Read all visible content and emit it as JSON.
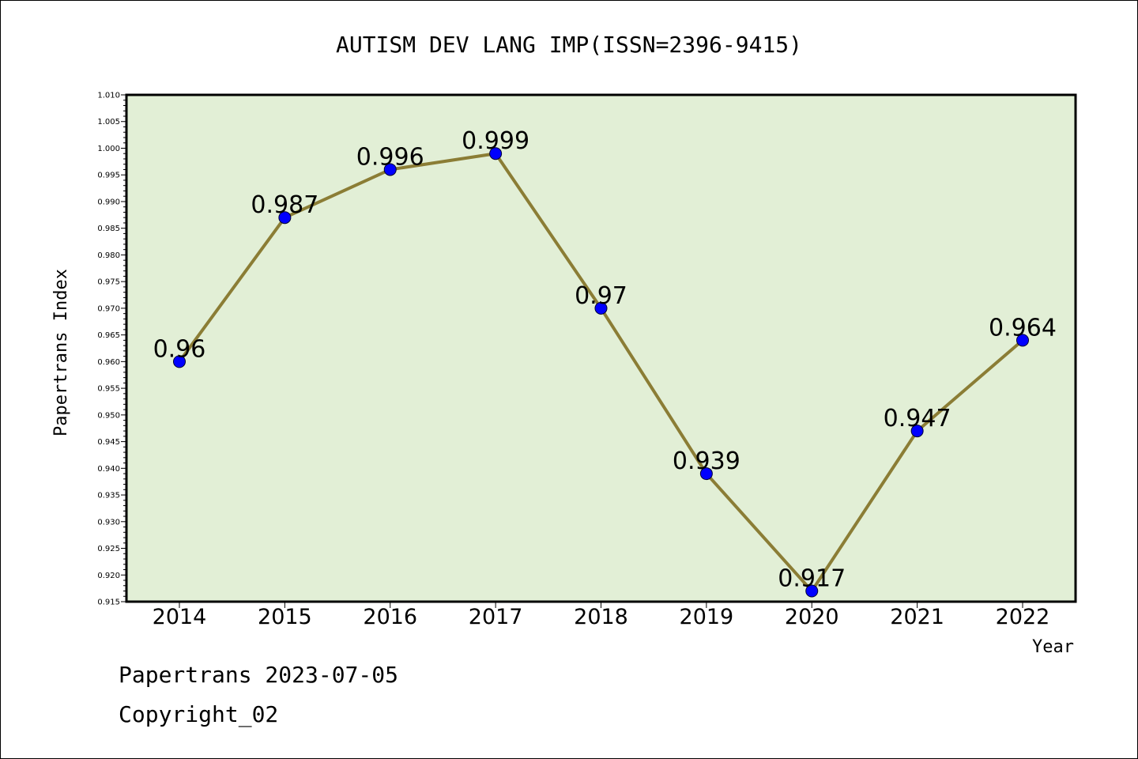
{
  "chart_data": {
    "type": "line",
    "title": "AUTISM DEV LANG IMP(ISSN=2396-9415)",
    "xlabel": "Year",
    "ylabel": "Papertrans Index",
    "x": [
      "2014",
      "2015",
      "2016",
      "2017",
      "2018",
      "2019",
      "2020",
      "2021",
      "2022"
    ],
    "values": [
      0.96,
      0.987,
      0.996,
      0.999,
      0.97,
      0.939,
      0.917,
      0.947,
      0.964
    ],
    "data_labels": [
      "0.96",
      "0.987",
      "0.996",
      "0.999",
      "0.97",
      "0.939",
      "0.917",
      "0.947",
      "0.964"
    ],
    "ylim": [
      0.915,
      1.01
    ],
    "yticks": [
      "0.915",
      "0.920",
      "0.925",
      "0.930",
      "0.935",
      "0.940",
      "0.945",
      "0.950",
      "0.955",
      "0.960",
      "0.965",
      "0.970",
      "0.975",
      "0.980",
      "0.985",
      "0.990",
      "0.995",
      "1.000",
      "1.005",
      "1.010"
    ],
    "grid": false,
    "colors": {
      "plot_background": "#e2efd6",
      "line": "#8b7d35",
      "marker": "#0000ff"
    }
  },
  "footer": {
    "line1": "Papertrans 2023-07-05",
    "line2": "Copyright_02"
  }
}
